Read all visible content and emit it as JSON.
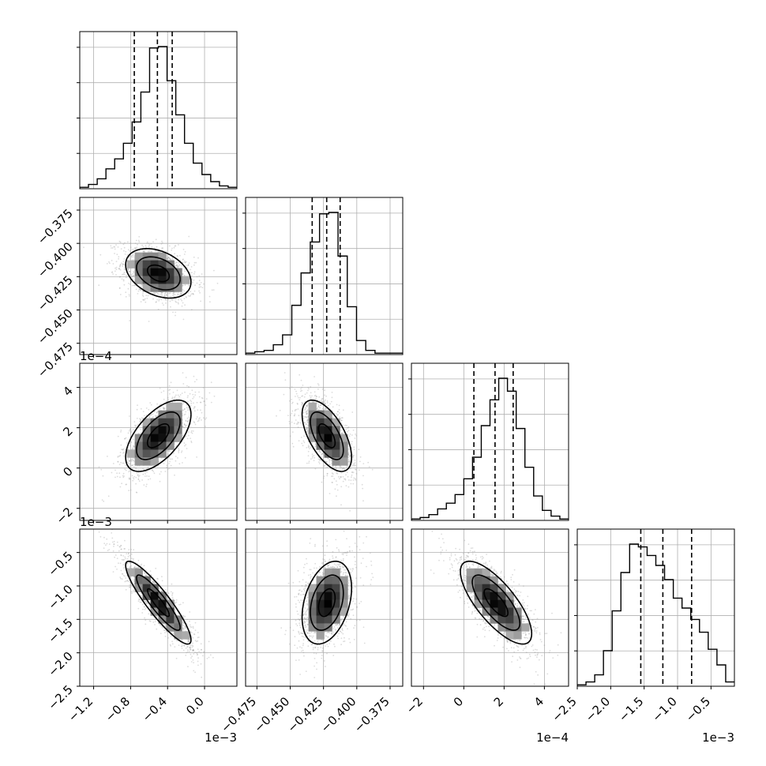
{
  "chart_data": {
    "type": "corner",
    "description_style": "lower-triangular corner plot: 1D histograms on the diagonal, 2D density/contour panels below",
    "variables": [
      {
        "range": [
          -0.00135,
          0.00035
        ],
        "ticks": [
          -0.0012,
          -0.0008,
          -0.0004,
          0.0
        ],
        "tick_labels": [
          "−1.2",
          "−0.8",
          "−0.4",
          "0.0"
        ],
        "offset_label": "1e−3",
        "center": -0.0005,
        "spread": 0.0002,
        "quantiles": [
          -0.00076,
          -0.00051,
          -0.00035
        ]
      },
      {
        "range": [
          -0.4835,
          -0.3655
        ],
        "ticks": [
          -0.475,
          -0.45,
          -0.425,
          -0.4,
          -0.375
        ],
        "tick_labels": [
          "−0.475",
          "−0.450",
          "−0.425",
          "−0.400",
          "−0.375"
        ],
        "offset_label": "",
        "center": -0.4225,
        "spread": 0.0105,
        "quantiles": [
          -0.4335,
          -0.4226,
          -0.4125
        ]
      },
      {
        "range": [
          -0.00026,
          0.00052
        ],
        "ticks": [
          -0.0002,
          0.0,
          0.0002,
          0.0004
        ],
        "tick_labels": [
          "−2",
          "0",
          "2",
          "4"
        ],
        "offset_label": "1e−4",
        "center": 0.00016,
        "spread": 0.0001,
        "quantiles": [
          5e-05,
          0.000155,
          0.000245
        ]
      },
      {
        "range": [
          -0.0025,
          -0.00015
        ],
        "ticks": [
          -0.0025,
          -0.002,
          -0.0015,
          -0.001,
          -0.0005
        ],
        "tick_labels": [
          "−2.5",
          "−2.0",
          "−1.5",
          "−1.0",
          "−0.5"
        ],
        "offset_label": "1e−3",
        "center": -0.00125,
        "spread": 0.00035,
        "quantiles": [
          -0.00155,
          -0.00122,
          -0.00079
        ]
      }
    ],
    "diagonal_histograms": [
      [
        1,
        3,
        7,
        14,
        21,
        32,
        47,
        68,
        99,
        100,
        76,
        52,
        32,
        18,
        10,
        5,
        2,
        1
      ],
      [
        1,
        2,
        3,
        7,
        14,
        35,
        58,
        80,
        100,
        101,
        70,
        34,
        10,
        3,
        1,
        1,
        1
      ],
      [
        1,
        2,
        4,
        8,
        12,
        18,
        29,
        44,
        66,
        84,
        99,
        90,
        64,
        37,
        17,
        7,
        3,
        1
      ],
      [
        1,
        3,
        8,
        25,
        53,
        80,
        100,
        98,
        92,
        85,
        75,
        62,
        55,
        47,
        38,
        26,
        15,
        3
      ]
    ],
    "correlations": [
      {
        "pair": [
          1,
          0
        ],
        "rho": -0.35
      },
      {
        "pair": [
          2,
          0
        ],
        "rho": 0.6
      },
      {
        "pair": [
          2,
          1
        ],
        "rho": -0.6
      },
      {
        "pair": [
          3,
          0
        ],
        "rho": -0.9
      },
      {
        "pair": [
          3,
          1
        ],
        "rho": 0.35
      },
      {
        "pair": [
          3,
          2
        ],
        "rho": -0.75
      }
    ],
    "contour_levels_sigma": [
      0.5,
      1.0,
      1.5
    ],
    "grid": true
  }
}
